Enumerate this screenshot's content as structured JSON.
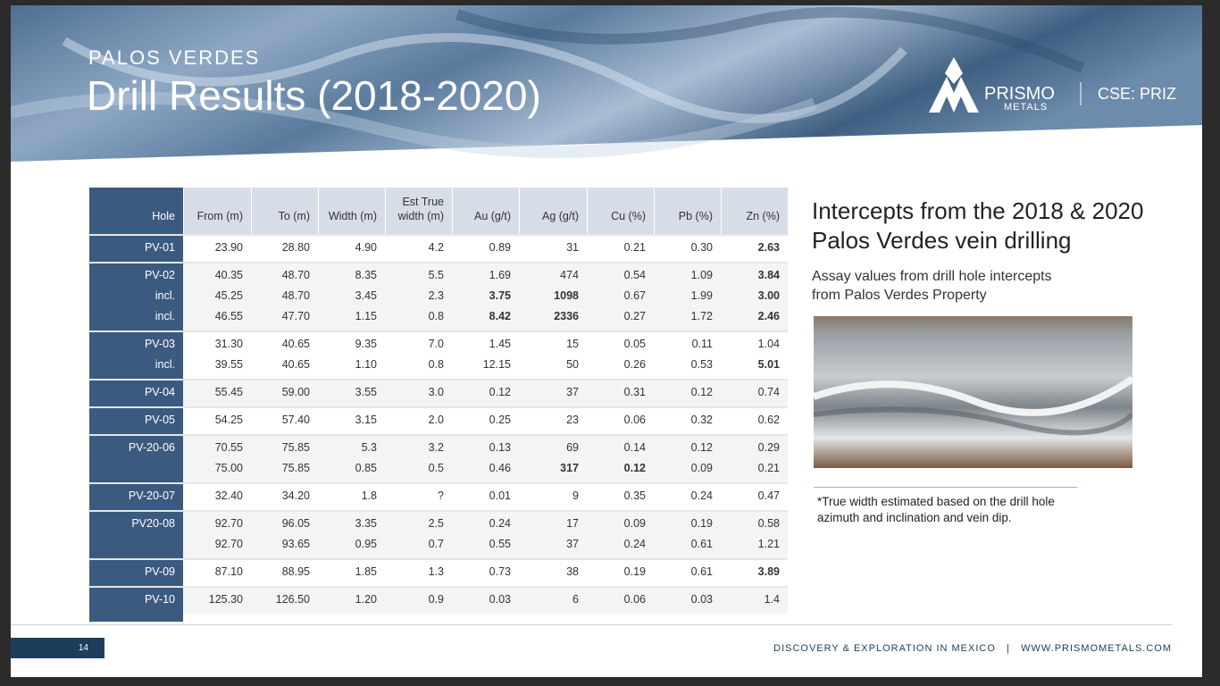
{
  "header": {
    "kicker": "PALOS VERDES",
    "title": "Drill Results (2018-2020)",
    "logo_name": "PRISMO",
    "logo_sub": "METALS",
    "ticker": "CSE: PRIZ"
  },
  "table": {
    "columns": [
      "Hole",
      "From (m)",
      "To (m)",
      "Width (m)",
      "Est True width (m)",
      "Au (g/t)",
      "Ag (g/t)",
      "Cu (%)",
      "Pb (%)",
      "Zn (%)"
    ],
    "groups": [
      {
        "rows": [
          {
            "cells": [
              "PV-01",
              "23.90",
              "28.80",
              "4.90",
              "4.2",
              "0.89",
              "31",
              "0.21",
              "0.30",
              "2.63"
            ],
            "bold": [
              9
            ]
          }
        ]
      },
      {
        "rows": [
          {
            "cells": [
              "PV-02",
              "40.35",
              "48.70",
              "8.35",
              "5.5",
              "1.69",
              "474",
              "0.54",
              "1.09",
              "3.84"
            ],
            "bold": [
              9
            ]
          },
          {
            "cells": [
              "incl.",
              "45.25",
              "48.70",
              "3.45",
              "2.3",
              "3.75",
              "1098",
              "0.67",
              "1.99",
              "3.00"
            ],
            "bold": [
              5,
              6,
              9
            ]
          },
          {
            "cells": [
              "incl.",
              "46.55",
              "47.70",
              "1.15",
              "0.8",
              "8.42",
              "2336",
              "0.27",
              "1.72",
              "2.46"
            ],
            "bold": [
              5,
              6,
              9
            ]
          }
        ]
      },
      {
        "rows": [
          {
            "cells": [
              "PV-03",
              "31.30",
              "40.65",
              "9.35",
              "7.0",
              "1.45",
              "15",
              "0.05",
              "0.11",
              "1.04"
            ],
            "bold": []
          },
          {
            "cells": [
              "incl.",
              "39.55",
              "40.65",
              "1.10",
              "0.8",
              "12.15",
              "50",
              "0.26",
              "0.53",
              "5.01"
            ],
            "bold": [
              9
            ]
          }
        ]
      },
      {
        "rows": [
          {
            "cells": [
              "PV-04",
              "55.45",
              "59.00",
              "3.55",
              "3.0",
              "0.12",
              "37",
              "0.31",
              "0.12",
              "0.74"
            ],
            "bold": []
          }
        ]
      },
      {
        "rows": [
          {
            "cells": [
              "PV-05",
              "54.25",
              "57.40",
              "3.15",
              "2.0",
              "0.25",
              "23",
              "0.06",
              "0.32",
              "0.62"
            ],
            "bold": []
          }
        ]
      },
      {
        "rows": [
          {
            "cells": [
              "PV-20-06",
              "70.55",
              "75.85",
              "5.3",
              "3.2",
              "0.13",
              "69",
              "0.14",
              "0.12",
              "0.29"
            ],
            "bold": []
          },
          {
            "cells": [
              null,
              "75.00",
              "75.85",
              "0.85",
              "0.5",
              "0.46",
              "317",
              "0.12",
              "0.09",
              "0.21"
            ],
            "bold": [
              6,
              7
            ]
          }
        ]
      },
      {
        "rows": [
          {
            "cells": [
              "PV-20-07",
              "32.40",
              "34.20",
              "1.8",
              "?",
              "0.01",
              "9",
              "0.35",
              "0.24",
              "0.47"
            ],
            "bold": []
          }
        ]
      },
      {
        "rows": [
          {
            "cells": [
              "PV20-08",
              "92.70",
              "96.05",
              "3.35",
              "2.5",
              "0.24",
              "17",
              "0.09",
              "0.19",
              "0.58"
            ],
            "bold": []
          },
          {
            "cells": [
              null,
              "92.70",
              "93.65",
              "0.95",
              "0.7",
              "0.55",
              "37",
              "0.24",
              "0.61",
              "1.21"
            ],
            "bold": []
          }
        ]
      },
      {
        "rows": [
          {
            "cells": [
              "PV-09",
              "87.10",
              "88.95",
              "1.85",
              "1.3",
              "0.73",
              "38",
              "0.19",
              "0.61",
              "3.89"
            ],
            "bold": [
              9
            ]
          }
        ]
      },
      {
        "rows": [
          {
            "cells": [
              "PV-10",
              "125.30",
              "126.50",
              "1.20",
              "0.9",
              "0.03",
              "6",
              "0.06",
              "0.03",
              "1.4"
            ],
            "bold": []
          }
        ]
      }
    ]
  },
  "side": {
    "heading": "Intercepts from the 2018 & 2020 Palos Verdes vein drilling",
    "subheading": "Assay values from drill hole intercepts from Palos Verdes Property",
    "footnote": "*True width estimated based on the drill hole azimuth and inclination and vein dip."
  },
  "footer": {
    "page": "14",
    "text": "DISCOVERY & EXPLORATION IN MEXICO   |   WWW.PRISMOMETALS.COM"
  }
}
